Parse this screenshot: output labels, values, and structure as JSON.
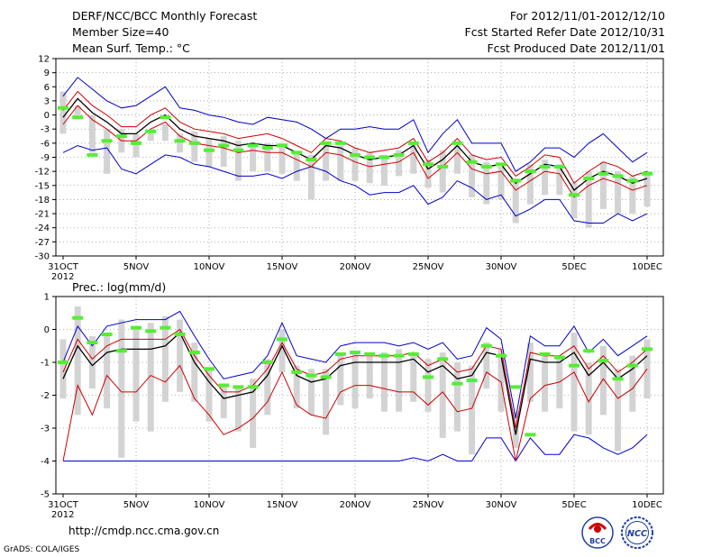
{
  "header": {
    "title": "DERF/NCC/BCC Monthly Forecast",
    "member": "Member Size=40",
    "variable": "Mean Surf. Temp.: °C",
    "period": "For 2012/11/01-2012/12/10",
    "started": "Fcst Started Refer Date 2012/10/31",
    "produced": "Fcst Produced Date 2012/11/01"
  },
  "footer": {
    "url": "http://cmdp.ncc.cma.gov.cn",
    "grads": "GrADS: COLA/IGES",
    "logo_left": "BCC",
    "logo_right": "NCC"
  },
  "colors": {
    "mean": "#000000",
    "spread": "#cc0000",
    "extreme": "#0000cc",
    "box": "#d3d3d3",
    "obs": "#55ee33"
  },
  "chart_data": [
    {
      "type": "line",
      "title": "Mean Surf. Temp.: °C",
      "xlabel": "",
      "ylabel": "",
      "ylim": [
        -30,
        12
      ],
      "yticks": [
        12,
        9,
        6,
        3,
        0,
        -3,
        -6,
        -9,
        -12,
        -15,
        -18,
        -21,
        -24,
        -27,
        -30
      ],
      "xticks": [
        {
          "day": 0,
          "label": "31OCT",
          "sub": "2012"
        },
        {
          "day": 5,
          "label": "5NOV"
        },
        {
          "day": 10,
          "label": "10NOV"
        },
        {
          "day": 15,
          "label": "15NOV"
        },
        {
          "day": 20,
          "label": "20NOV"
        },
        {
          "day": 25,
          "label": "25NOV"
        },
        {
          "day": 30,
          "label": "30NOV"
        },
        {
          "day": 35,
          "label": "5DEC"
        },
        {
          "day": 40,
          "label": "10DEC"
        }
      ],
      "series": [
        {
          "name": "max",
          "role": "extreme",
          "values": [
            4,
            8,
            5.5,
            3,
            1.5,
            2,
            4,
            6,
            1.5,
            1,
            0,
            -0.5,
            -1.5,
            -2,
            -0.5,
            -1,
            -1.5,
            -3,
            -5,
            -3,
            -3,
            -2.5,
            -3,
            -3,
            -1,
            -8,
            -4,
            -1,
            -6,
            -6,
            -6,
            -12,
            -10,
            -7,
            -7,
            -9,
            -6,
            -4,
            -7,
            -10,
            -8
          ]
        },
        {
          "name": "upper",
          "role": "spread",
          "values": [
            1,
            5,
            2,
            0,
            -2.5,
            -2.5,
            0,
            1.5,
            -1.5,
            -3,
            -3.5,
            -4,
            -5,
            -4.5,
            -4,
            -5,
            -6.5,
            -8,
            -5,
            -5.5,
            -7,
            -8,
            -7.5,
            -7,
            -5,
            -10,
            -8,
            -5,
            -8.5,
            -9.5,
            -9,
            -13,
            -11,
            -8.5,
            -9,
            -14.5,
            -12,
            -10,
            -11,
            -13,
            -12
          ]
        },
        {
          "name": "mean",
          "role": "mean",
          "values": [
            -0.5,
            3.5,
            0.5,
            -1.5,
            -4,
            -4,
            -1.5,
            0,
            -3,
            -4.5,
            -5,
            -5.5,
            -6.5,
            -6,
            -6.5,
            -6.5,
            -8,
            -9.5,
            -6.5,
            -7,
            -8.5,
            -9.5,
            -9,
            -8.5,
            -6.5,
            -11.5,
            -9.5,
            -6.5,
            -10,
            -11,
            -10.5,
            -14.5,
            -12.5,
            -10.5,
            -11,
            -16,
            -13.5,
            -12,
            -13,
            -14.5,
            -13.5
          ]
        },
        {
          "name": "lower",
          "role": "spread",
          "values": [
            -2,
            2,
            -1,
            -3,
            -5.5,
            -5.5,
            -3,
            -1.5,
            -4.5,
            -6,
            -6.5,
            -7,
            -8,
            -7.5,
            -8,
            -8,
            -9.5,
            -11,
            -8,
            -8.5,
            -10,
            -11,
            -10.5,
            -10,
            -8,
            -13.5,
            -11,
            -8,
            -11.5,
            -12.5,
            -12,
            -16,
            -14,
            -12,
            -12.5,
            -17.5,
            -15,
            -13.5,
            -14.5,
            -16,
            -15
          ]
        },
        {
          "name": "min",
          "role": "extreme",
          "values": [
            -8,
            -6.5,
            -7.5,
            -7,
            -11.5,
            -12.5,
            -10.5,
            -8.5,
            -9,
            -10.5,
            -11,
            -12,
            -13,
            -13,
            -12.5,
            -13.5,
            -12,
            -11,
            -12,
            -14,
            -15,
            -17,
            -16.5,
            -16.5,
            -15,
            -19,
            -17.5,
            -14,
            -15.5,
            -18,
            -17,
            -21.5,
            -20,
            -18,
            -18,
            -22.5,
            -23,
            -23,
            -21,
            -22.5,
            -21
          ]
        },
        {
          "name": "box_top",
          "role": "box",
          "values": [
            5,
            2,
            0,
            -3,
            -3,
            -4,
            -3.5,
            -2,
            -4,
            -3.5,
            -5,
            -4.5,
            -5.5,
            -6.5,
            -6,
            -6,
            -8,
            -8.5,
            -6.5,
            -6.5,
            -7,
            -8,
            -8.5,
            -7.5,
            -6,
            -9.5,
            -7.5,
            -6.5,
            -8.5,
            -10,
            -11,
            -13.5,
            -10.5,
            -9.5,
            -10.5,
            -14.5,
            -12,
            -10,
            -12,
            -13,
            -12
          ]
        },
        {
          "name": "box_bottom",
          "role": "box",
          "values": [
            -4,
            0,
            -8,
            -12.5,
            -8,
            -9,
            -5.5,
            -5.5,
            -8,
            -10,
            -11,
            -11,
            -14,
            -12,
            -12,
            -12.5,
            -14,
            -18,
            -14,
            -14,
            -14,
            -14.5,
            -15,
            -13,
            -12.5,
            -15.5,
            -16.5,
            -12.5,
            -17.5,
            -19,
            -18,
            -23,
            -19,
            -17,
            -17,
            -22,
            -24,
            -20,
            -21,
            -21,
            -19.5
          ]
        },
        {
          "name": "observed",
          "role": "obs",
          "values": [
            1.5,
            -0.5,
            -8.5,
            -5.5,
            -4.5,
            -6,
            -3.5,
            -0.5,
            -5.5,
            -6,
            -7.5,
            -6.5,
            -7.5,
            -6.5,
            -7,
            -6.5,
            -8,
            -9.5,
            -6,
            -6,
            -8.5,
            -9,
            -9,
            -8.5,
            -6,
            -10.5,
            -11,
            -6,
            -10,
            -11,
            -10.5,
            -14,
            -12,
            -11,
            -11,
            -17,
            -13.5,
            -12.5,
            -13,
            -14,
            -12.5
          ]
        }
      ]
    },
    {
      "type": "line",
      "title": "Prec.: log(mm/d)",
      "xlabel": "",
      "ylabel": "",
      "ylim": [
        -5,
        1
      ],
      "yticks": [
        1,
        0,
        -1,
        -2,
        -3,
        -4,
        -5
      ],
      "xticks": [
        {
          "day": 0,
          "label": "31OCT",
          "sub": "2012"
        },
        {
          "day": 5,
          "label": "5NOV"
        },
        {
          "day": 10,
          "label": "10NOV"
        },
        {
          "day": 15,
          "label": "15NOV"
        },
        {
          "day": 20,
          "label": "20NOV"
        },
        {
          "day": 25,
          "label": "25NOV"
        },
        {
          "day": 30,
          "label": "30NOV"
        },
        {
          "day": 35,
          "label": "5DEC"
        },
        {
          "day": 40,
          "label": "10DEC"
        }
      ],
      "series": [
        {
          "name": "max",
          "role": "extreme",
          "values": [
            -1,
            0.1,
            -0.5,
            0.1,
            0.2,
            0.3,
            0.3,
            0.3,
            0.55,
            -0.2,
            -0.9,
            -1.5,
            -1.4,
            -1.3,
            -0.8,
            0.2,
            -0.8,
            -0.9,
            -1.0,
            -0.5,
            -0.4,
            -0.4,
            -0.4,
            -0.5,
            -0.4,
            -0.6,
            -0.4,
            -0.9,
            -0.8,
            0.05,
            -0.3,
            -2.7,
            -0.2,
            -0.5,
            -0.5,
            0.1,
            -0.7,
            -0.3,
            -0.8,
            -0.5,
            -0.2
          ]
        },
        {
          "name": "upper",
          "role": "spread",
          "values": [
            -1.3,
            -0.3,
            -0.9,
            -0.5,
            -0.3,
            -0.3,
            -0.3,
            -0.3,
            0,
            -0.8,
            -1.4,
            -1.9,
            -1.9,
            -1.7,
            -1.2,
            -0.4,
            -1.2,
            -1.4,
            -1.3,
            -0.9,
            -0.8,
            -0.8,
            -0.8,
            -0.8,
            -0.7,
            -1.1,
            -0.9,
            -1.3,
            -1.2,
            -0.5,
            -0.6,
            -3.0,
            -0.7,
            -0.8,
            -0.8,
            -0.5,
            -1.2,
            -0.8,
            -1.3,
            -1.0,
            -0.6
          ]
        },
        {
          "name": "mean",
          "role": "mean",
          "values": [
            -1.5,
            -0.5,
            -1.1,
            -0.7,
            -0.6,
            -0.6,
            -0.6,
            -0.5,
            -0.1,
            -1.0,
            -1.6,
            -2.1,
            -2.0,
            -1.9,
            -1.4,
            -0.5,
            -1.4,
            -1.6,
            -1.5,
            -1.1,
            -1.0,
            -1.0,
            -1.0,
            -1.0,
            -0.9,
            -1.3,
            -1.1,
            -1.5,
            -1.4,
            -0.7,
            -0.8,
            -3.2,
            -0.9,
            -1.0,
            -1.0,
            -0.7,
            -1.4,
            -1.0,
            -1.5,
            -1.2,
            -0.8
          ]
        },
        {
          "name": "lower",
          "role": "spread",
          "values": [
            -4,
            -1.7,
            -2.6,
            -1.4,
            -1.9,
            -1.9,
            -1.4,
            -1.6,
            -1.1,
            -2.1,
            -2.6,
            -3.2,
            -3.0,
            -2.7,
            -2.2,
            -1.3,
            -2.3,
            -2.6,
            -2.7,
            -1.9,
            -1.7,
            -1.7,
            -1.8,
            -1.9,
            -1.9,
            -2.3,
            -1.9,
            -2.5,
            -2.4,
            -1.3,
            -1.6,
            -4.0,
            -2.1,
            -1.7,
            -1.6,
            -1.3,
            -2.2,
            -1.5,
            -2.1,
            -1.8,
            -1.2
          ]
        },
        {
          "name": "min",
          "role": "extreme",
          "values": [
            -4,
            -4,
            -4,
            -4,
            -4,
            -4,
            -4,
            -4,
            -4,
            -4,
            -4,
            -4,
            -4,
            -4,
            -4,
            -4,
            -4,
            -4,
            -4,
            -4,
            -4,
            -4,
            -4,
            -4,
            -3.9,
            -4,
            -3.8,
            -4,
            -4,
            -3.3,
            -3.3,
            -4,
            -3.3,
            -3.8,
            -3.8,
            -3.2,
            -3.3,
            -3.6,
            -3.8,
            -3.6,
            -3.2
          ]
        },
        {
          "name": "box_top",
          "role": "box",
          "values": [
            -0.3,
            0.7,
            -0.2,
            -0.2,
            0.3,
            0.1,
            0.2,
            0.4,
            0.3,
            -0.4,
            -1.2,
            -1.7,
            -1.7,
            -1.5,
            -0.9,
            0,
            -1.1,
            -1.2,
            -1.2,
            -0.7,
            -0.7,
            -0.7,
            -0.7,
            -0.6,
            -0.7,
            -0.9,
            -0.7,
            -1.0,
            -1.1,
            -0.4,
            -0.6,
            -2.5,
            -0.4,
            -0.7,
            -0.8,
            -0.1,
            -1.0,
            -0.5,
            -1.2,
            -0.8,
            -0.3
          ]
        },
        {
          "name": "box_bottom",
          "role": "box",
          "values": [
            -2.1,
            -2.6,
            -1.8,
            -2.4,
            -3.9,
            -2.8,
            -3.1,
            -2.2,
            -1.9,
            -2.2,
            -2.8,
            -2.7,
            -3.1,
            -3.6,
            -2.6,
            -1.3,
            -2.4,
            -2.6,
            -3.2,
            -2.3,
            -2.4,
            -2.1,
            -2.5,
            -2.5,
            -2.2,
            -2.5,
            -3.3,
            -3.1,
            -3.8,
            -1.8,
            -2.5,
            -3.6,
            -2.2,
            -2.5,
            -2.4,
            -3.1,
            -3.2,
            -2.6,
            -3.7,
            -2.5,
            -2.1
          ]
        },
        {
          "name": "observed",
          "role": "obs",
          "values": [
            -1.0,
            0.35,
            -0.4,
            -0.15,
            -0.65,
            0.05,
            -0.05,
            0.05,
            -0.15,
            -0.7,
            -1.2,
            -1.7,
            -1.75,
            -1.75,
            -1.0,
            -0.3,
            -1.3,
            -1.4,
            -1.45,
            -0.75,
            -0.7,
            -0.75,
            -0.8,
            -0.8,
            -0.75,
            -1.45,
            -0.9,
            -1.65,
            -1.55,
            -0.5,
            -0.8,
            -1.75,
            -3.2,
            -0.75,
            -0.85,
            -1.1,
            -0.65,
            -0.95,
            -1.5,
            -1.1,
            -0.6
          ]
        }
      ]
    }
  ]
}
